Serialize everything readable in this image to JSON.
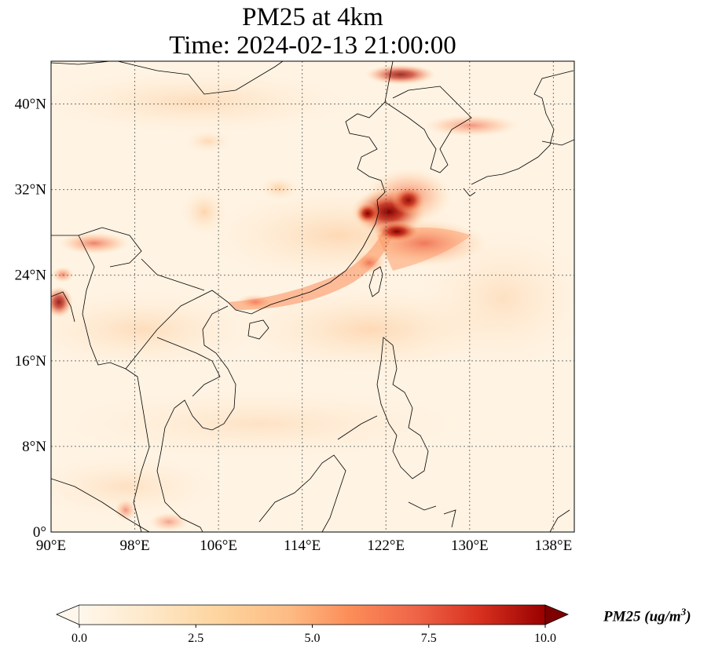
{
  "title_line1": "PM25 at 4km",
  "title_line2": "Time: 2024-02-13 21:00:00",
  "map": {
    "lon_range": [
      90,
      140
    ],
    "lat_range": [
      0,
      44
    ],
    "lon_ticks": [
      {
        "value": 90,
        "label": "90°E"
      },
      {
        "value": 98,
        "label": "98°E"
      },
      {
        "value": 106,
        "label": "106°E"
      },
      {
        "value": 114,
        "label": "114°E"
      },
      {
        "value": 122,
        "label": "122°E"
      },
      {
        "value": 130,
        "label": "130°E"
      },
      {
        "value": 138,
        "label": "138°E"
      }
    ],
    "lat_ticks": [
      {
        "value": 0,
        "label": "0°"
      },
      {
        "value": 8,
        "label": "8°N"
      },
      {
        "value": 16,
        "label": "16°N"
      },
      {
        "value": 24,
        "label": "24°N"
      },
      {
        "value": 32,
        "label": "32°N"
      },
      {
        "value": 40,
        "label": "40°N"
      }
    ],
    "gridlines": true,
    "colormap": "OrRd",
    "hotspots": [
      {
        "lon": 121.5,
        "lat": 31.0,
        "value": 10
      },
      {
        "lon": 122.5,
        "lat": 32.5,
        "value": 9
      },
      {
        "lon": 124.5,
        "lat": 29.5,
        "value": 6
      },
      {
        "lon": 120.0,
        "lat": 25.5,
        "value": 4
      },
      {
        "lon": 127.0,
        "lat": 39.5,
        "value": 4
      },
      {
        "lon": 123.5,
        "lat": 43.0,
        "value": 6
      },
      {
        "lon": 94.5,
        "lat": 27.5,
        "value": 5
      },
      {
        "lon": 90.5,
        "lat": 22.0,
        "value": 6
      },
      {
        "lon": 112.5,
        "lat": 23.0,
        "value": 3
      },
      {
        "lon": 97.5,
        "lat": 2.0,
        "value": 4
      }
    ]
  },
  "colorbar": {
    "label": "PM25 (ug/m",
    "label_superscript": "3",
    "label_close": ")",
    "min": 0,
    "max": 10,
    "extend": "both",
    "ticks": [
      {
        "value": 0,
        "label": "0.0"
      },
      {
        "value": 2.5,
        "label": "2.5"
      },
      {
        "value": 5,
        "label": "5.0"
      },
      {
        "value": 7.5,
        "label": "7.5"
      },
      {
        "value": 10,
        "label": "10.0"
      }
    ]
  }
}
